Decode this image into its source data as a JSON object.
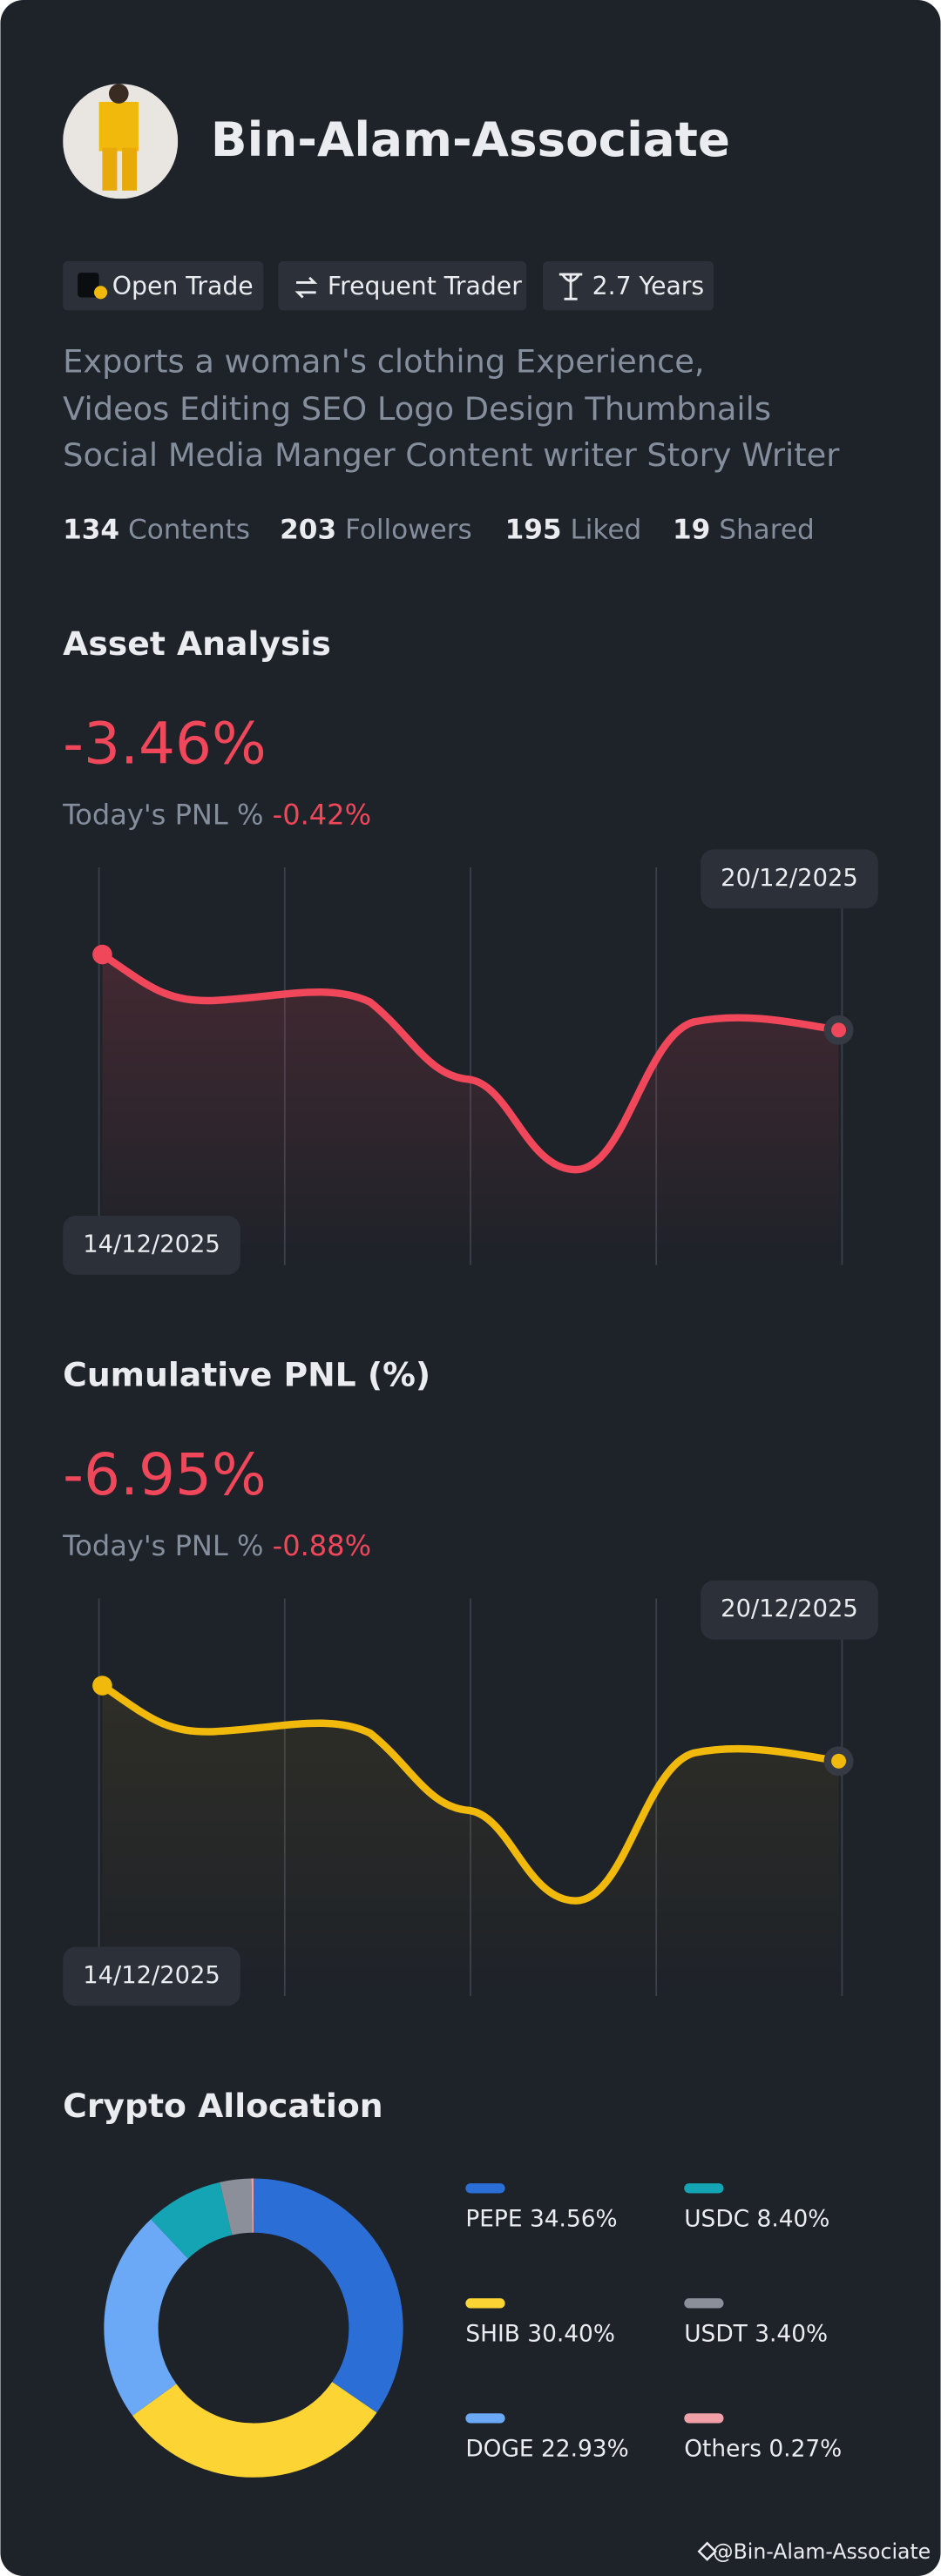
{
  "profile": {
    "name": "Bin-Alam-Associate",
    "tags": [
      "Open Trade",
      "Frequent Trader",
      "2.7 Years"
    ],
    "bio": [
      "Exports a woman's clothing  Experience,",
      "Videos Editing SEO Logo Design Thumbnails",
      "Social Media Manger Content writer Story Writer"
    ],
    "stats": [
      {
        "count": "134",
        "label": "Contents"
      },
      {
        "count": "203",
        "label": "Followers"
      },
      {
        "count": "195",
        "label": "Liked"
      },
      {
        "count": "19",
        "label": "Shared"
      }
    ]
  },
  "asset_analysis": {
    "title": "Asset Analysis",
    "value": "-3.46%",
    "today_label": "Today's PNL %",
    "today_value": "-0.42%",
    "end_date": "20/12/2025",
    "start_date": "14/12/2025"
  },
  "cumulative_pnl": {
    "title": "Cumulative PNL (%)",
    "value": "-6.95%",
    "today_label": "Today's PNL %",
    "today_value": "-0.88%",
    "end_date": "20/12/2025",
    "start_date": "14/12/2025"
  },
  "chart_data": {
    "type": "pie",
    "title": "Crypto Allocation",
    "categories": [
      "PEPE",
      "USDC",
      "SHIB",
      "USDT",
      "DOGE",
      "Others"
    ],
    "values": [
      34.56,
      8.4,
      30.4,
      3.4,
      22.93,
      0.27
    ],
    "value_labels": [
      "34.56%",
      "8.40%",
      "30.40%",
      "3.40%",
      "22.93%",
      "0.27%"
    ],
    "colors": [
      "#2b6fd6",
      "#14a4b4",
      "#fcd535",
      "#8a8f99",
      "#6ba8f5",
      "#f2a0a8"
    ],
    "order": [
      "PEPE",
      "SHIB",
      "DOGE",
      "USDC",
      "USDT",
      "Others"
    ]
  },
  "footer": "@Bin-Alam-Associate"
}
